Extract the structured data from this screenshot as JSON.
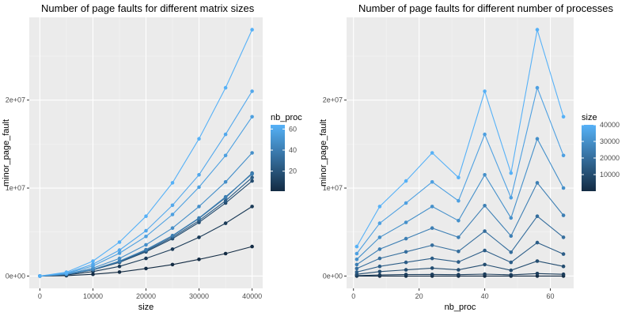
{
  "chart_data": [
    {
      "type": "line",
      "title": "Number of page faults for different matrix sizes",
      "xlabel": "size",
      "ylabel": "minor_page_fault",
      "xlim": [
        -2000,
        42000
      ],
      "ylim": [
        -1400000,
        29400000
      ],
      "xticks": [
        0,
        10000,
        20000,
        30000,
        40000
      ],
      "xtick_labels": [
        "0",
        "10000",
        "20000",
        "30000",
        "40000"
      ],
      "yticks": [
        0,
        10000000,
        20000000
      ],
      "ytick_labels": [
        "0e+00",
        "1e+07",
        "2e+07"
      ],
      "grid": true,
      "legend": {
        "title": "nb_proc",
        "type": "colorbar",
        "ticks": [
          20,
          40,
          60
        ],
        "tick_labels": [
          "20",
          "40",
          "60"
        ],
        "range": [
          1,
          64
        ],
        "placement": "right"
      },
      "x": [
        0,
        5000,
        10000,
        15000,
        20000,
        25000,
        30000,
        35000,
        40000
      ],
      "series": [
        {
          "nb_proc": 1,
          "values": [
            0,
            50000,
            200000,
            450000,
            850000,
            1300000,
            1900000,
            2550000,
            3350000
          ]
        },
        {
          "nb_proc": 8,
          "values": [
            0,
            120000,
            500000,
            1100000,
            2000000,
            3050000,
            4400000,
            6000000,
            7900000
          ]
        },
        {
          "nb_proc": 16,
          "values": [
            0,
            170000,
            700000,
            1550000,
            2750000,
            4250000,
            6100000,
            8300000,
            10800000
          ]
        },
        {
          "nb_proc": 24,
          "values": [
            0,
            180000,
            720000,
            1600000,
            2850000,
            4400000,
            6300000,
            8550000,
            11200000
          ]
        },
        {
          "nb_proc": 32,
          "values": [
            0,
            185000,
            740000,
            1650000,
            2950000,
            4550000,
            6550000,
            8900000,
            11700000
          ]
        },
        {
          "nb_proc": 40,
          "values": [
            0,
            190000,
            750000,
            1700000,
            3000000,
            4600000,
            6600000,
            9000000,
            11600000
          ]
        },
        {
          "nb_proc": 48,
          "values": [
            0,
            220000,
            900000,
            2000000,
            3550000,
            5450000,
            7900000,
            10700000,
            14000000
          ]
        },
        {
          "nb_proc": 56,
          "values": [
            0,
            280000,
            1150000,
            2600000,
            4500000,
            7000000,
            10100000,
            13700000,
            18100000
          ]
        },
        {
          "nb_proc": 60,
          "values": [
            0,
            330000,
            1350000,
            2950000,
            5150000,
            8050000,
            11500000,
            16100000,
            21000000
          ]
        },
        {
          "nb_proc": 64,
          "values": [
            0,
            430000,
            1700000,
            3850000,
            6800000,
            10600000,
            15600000,
            21400000,
            28000000
          ]
        }
      ]
    },
    {
      "type": "line",
      "title": "Number of page faults for different number of processes",
      "xlabel": "nb_proc",
      "ylabel": "minor_page_fault",
      "xlim": [
        -2.1,
        67.1
      ],
      "ylim": [
        -1400000,
        29400000
      ],
      "xticks": [
        0,
        20,
        40,
        60
      ],
      "xtick_labels": [
        "0",
        "20",
        "40",
        "60"
      ],
      "yticks": [
        0,
        10000000,
        20000000
      ],
      "ytick_labels": [
        "0e+00",
        "1e+07",
        "2e+07"
      ],
      "grid": true,
      "legend": {
        "title": "size",
        "type": "colorbar",
        "ticks": [
          10000,
          20000,
          30000,
          40000
        ],
        "tick_labels": [
          "10000",
          "20000",
          "30000",
          "40000"
        ],
        "range": [
          0,
          40000
        ],
        "placement": "right"
      },
      "x": [
        1,
        8,
        16,
        24,
        32,
        40,
        48,
        56,
        64
      ],
      "series": [
        {
          "size": 0,
          "values": [
            0,
            0,
            0,
            0,
            0,
            0,
            0,
            0,
            0
          ]
        },
        {
          "size": 5000,
          "values": [
            50000,
            120000,
            170000,
            180000,
            150000,
            220000,
            140000,
            280000,
            200000
          ]
        },
        {
          "size": 10000,
          "values": [
            200000,
            500000,
            700000,
            900000,
            700000,
            1300000,
            650000,
            1700000,
            1100000
          ]
        },
        {
          "size": 15000,
          "values": [
            450000,
            1100000,
            1550000,
            2000000,
            1600000,
            2900000,
            1550000,
            3800000,
            2500000
          ]
        },
        {
          "size": 20000,
          "values": [
            850000,
            2000000,
            2750000,
            3500000,
            2800000,
            5100000,
            2700000,
            6800000,
            4400000
          ]
        },
        {
          "size": 25000,
          "values": [
            1300000,
            3050000,
            4250000,
            5450000,
            4400000,
            8000000,
            4550000,
            10600000,
            6900000
          ]
        },
        {
          "size": 30000,
          "values": [
            1900000,
            4400000,
            6100000,
            7900000,
            6300000,
            11500000,
            6600000,
            15600000,
            10000000
          ]
        },
        {
          "size": 35000,
          "values": [
            2550000,
            6000000,
            8300000,
            10700000,
            8550000,
            16100000,
            8900000,
            21400000,
            13700000
          ]
        },
        {
          "size": 40000,
          "values": [
            3350000,
            7900000,
            10800000,
            14000000,
            11200000,
            21000000,
            11700000,
            28000000,
            18100000
          ]
        }
      ]
    }
  ]
}
